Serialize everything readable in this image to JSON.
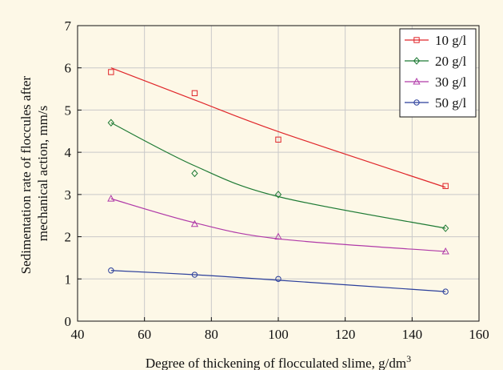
{
  "chart_data": {
    "type": "scatter",
    "xlabel": "Degree of thickening of flocculated slime, g/dm",
    "xlabel_sup": "3",
    "ylabel_line1": "Sedimentation rate of floccules after",
    "ylabel_line2": "mechanical action, mm/s",
    "xlim": [
      40,
      160
    ],
    "ylim": [
      0,
      7
    ],
    "x_ticks": [
      "40",
      "60",
      "80",
      "100",
      "120",
      "140",
      "160"
    ],
    "y_ticks": [
      "0",
      "1",
      "2",
      "3",
      "4",
      "5",
      "6",
      "7"
    ],
    "grid": true,
    "legend_position": "top-right",
    "x": [
      50,
      75,
      100,
      150
    ],
    "series": [
      {
        "name": "10 g/l",
        "color": "#e0262a",
        "marker": "square",
        "values": [
          5.9,
          5.4,
          4.3,
          3.2
        ],
        "fit": [
          6.0,
          5.24,
          4.49,
          3.17
        ]
      },
      {
        "name": "20 g/l",
        "color": "#1e7a34",
        "marker": "diamond",
        "values": [
          4.7,
          3.5,
          3.0,
          2.2
        ],
        "fit": [
          4.7,
          3.68,
          2.95,
          2.2
        ]
      },
      {
        "name": "30 g/l",
        "color": "#b03aa8",
        "marker": "triangle",
        "values": [
          2.9,
          2.3,
          2.0,
          1.65
        ],
        "fit": [
          2.9,
          2.33,
          1.95,
          1.65
        ]
      },
      {
        "name": "50 g/l",
        "color": "#2b3f9b",
        "marker": "circle",
        "values": [
          1.2,
          1.1,
          1.0,
          0.7
        ],
        "fit": [
          1.2,
          1.1,
          0.97,
          0.7
        ]
      }
    ]
  }
}
